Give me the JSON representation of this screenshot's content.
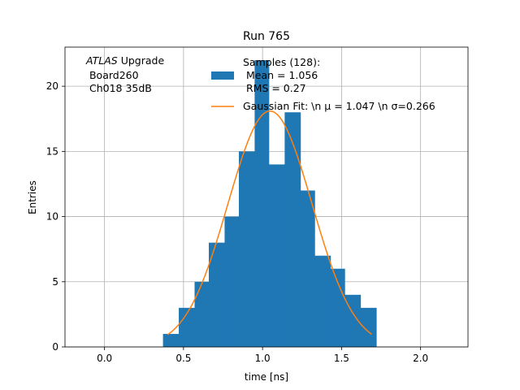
{
  "chart_data": {
    "type": "bar",
    "title": "Run 765",
    "xlabel": "time [ns]",
    "ylabel": "Entries",
    "xlim": [
      -0.25,
      2.3
    ],
    "ylim": [
      0,
      23
    ],
    "xticks": [
      0.0,
      0.5,
      1.0,
      1.5,
      2.0
    ],
    "yticks": [
      0,
      5,
      10,
      15,
      20
    ],
    "grid": true,
    "annotation": {
      "atlas": "ATLAS",
      "upgrade": " Upgrade",
      "line2": " Board260",
      "line3": " Ch018 35dB"
    },
    "histogram": {
      "name_lines": [
        "Samples (128):",
        " Mean = 1.056",
        " RMS = 0.27"
      ],
      "color": "#1f77b4",
      "bin_edges": [
        0.37,
        0.47,
        0.57,
        0.66,
        0.76,
        0.85,
        0.95,
        1.04,
        1.14,
        1.24,
        1.33,
        1.43,
        1.52,
        1.62,
        1.72
      ],
      "counts": [
        1,
        3,
        5,
        8,
        10,
        15,
        22,
        14,
        18,
        12,
        7,
        6,
        4,
        3
      ]
    },
    "gaussian_fit": {
      "name": "Gaussian Fit: \\n μ = 1.047 \\n σ=0.266",
      "color": "#ff7f0e",
      "mu": 1.047,
      "sigma": 0.266,
      "amplitude": 18.1,
      "x_range": [
        0.4,
        1.69
      ]
    },
    "legend_position": "top-right"
  }
}
